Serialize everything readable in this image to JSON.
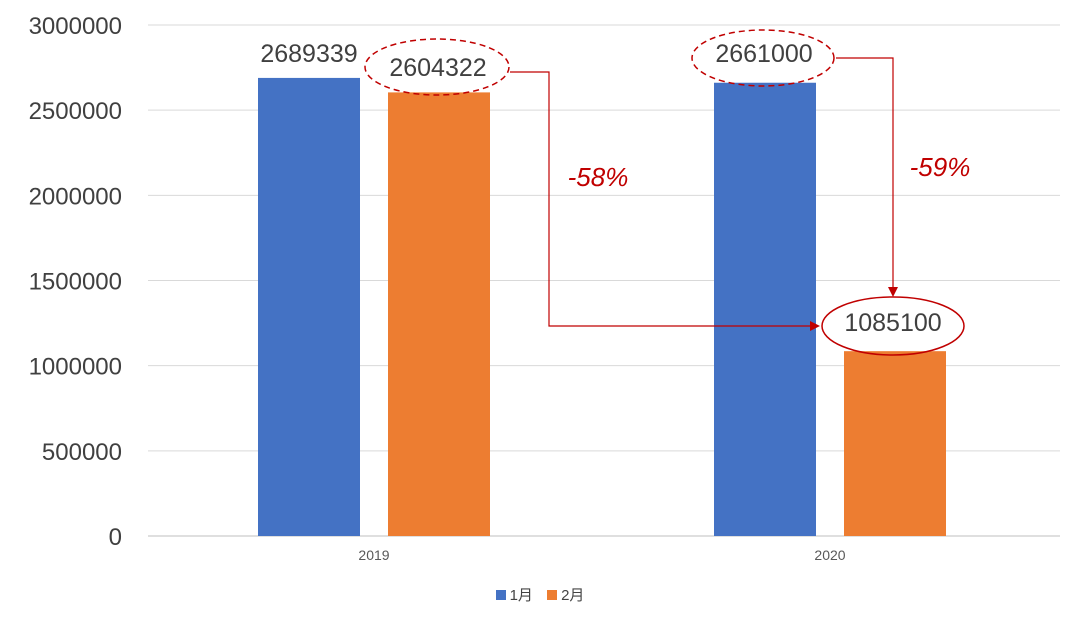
{
  "chart_data": {
    "type": "bar",
    "categories": [
      "2019",
      "2020"
    ],
    "series": [
      {
        "name": "1月",
        "values": [
          2689339,
          2661000
        ],
        "color": "#4472C4"
      },
      {
        "name": "2月",
        "values": [
          2604322,
          1085100
        ],
        "color": "#ED7D31"
      }
    ],
    "ylim": [
      0,
      3000000
    ],
    "yticks": [
      "0",
      "500000",
      "1000000",
      "1500000",
      "2000000",
      "2500000",
      "3000000"
    ],
    "grid": true,
    "legend_position": "bottom",
    "annotations": [
      {
        "text": "-58%",
        "from": "2019 2月",
        "to": "2020 2月",
        "color": "#C00000"
      },
      {
        "text": "-59%",
        "from": "2020 1月",
        "to": "2020 2月",
        "color": "#C00000"
      }
    ]
  }
}
